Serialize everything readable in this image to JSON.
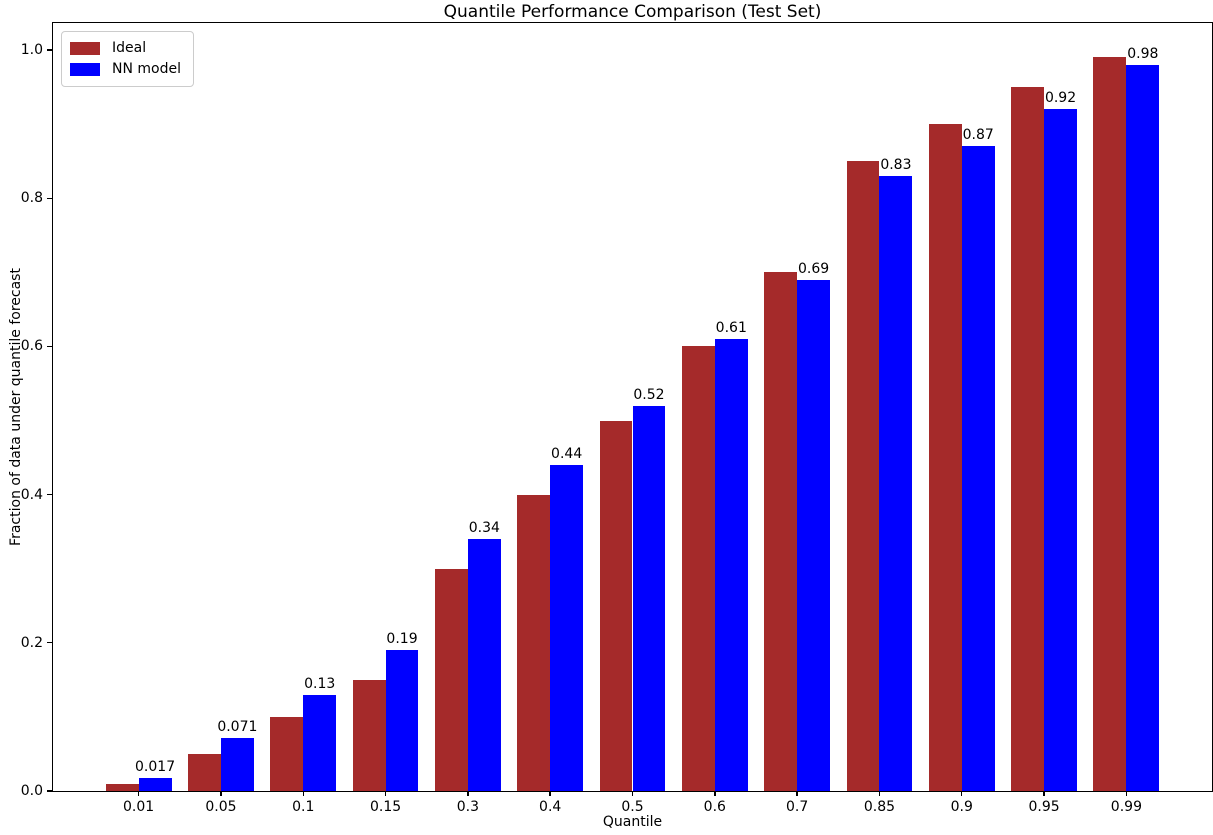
{
  "chart_data": {
    "type": "bar",
    "title": "Quantile Performance Comparison (Test Set)",
    "xlabel": "Quantile",
    "ylabel": "Fraction of data under quantile forecast",
    "categories": [
      "0.01",
      "0.05",
      "0.1",
      "0.15",
      "0.3",
      "0.4",
      "0.5",
      "0.6",
      "0.7",
      "0.85",
      "0.9",
      "0.95",
      "0.99"
    ],
    "series": [
      {
        "name": "Ideal",
        "color": "#A52A2A",
        "values": [
          0.01,
          0.05,
          0.1,
          0.15,
          0.3,
          0.4,
          0.5,
          0.6,
          0.7,
          0.85,
          0.9,
          0.95,
          0.99
        ]
      },
      {
        "name": "NN model",
        "color": "#0000FF",
        "values": [
          0.017,
          0.071,
          0.13,
          0.19,
          0.34,
          0.44,
          0.52,
          0.61,
          0.69,
          0.83,
          0.87,
          0.92,
          0.98
        ]
      }
    ],
    "bar_labels": [
      "0.017",
      "0.071",
      "0.13",
      "0.19",
      "0.34",
      "0.44",
      "0.52",
      "0.61",
      "0.69",
      "0.83",
      "0.87",
      "0.92",
      "0.98"
    ],
    "bar_labels_on_series": "NN model",
    "yticks": [
      "0.0",
      "0.2",
      "0.4",
      "0.6",
      "0.8",
      "1.0"
    ],
    "ylim": [
      0,
      1.039
    ],
    "legend_position": "upper left",
    "grid": false,
    "background_color": "#ffffff",
    "axis_color": "#000000"
  }
}
